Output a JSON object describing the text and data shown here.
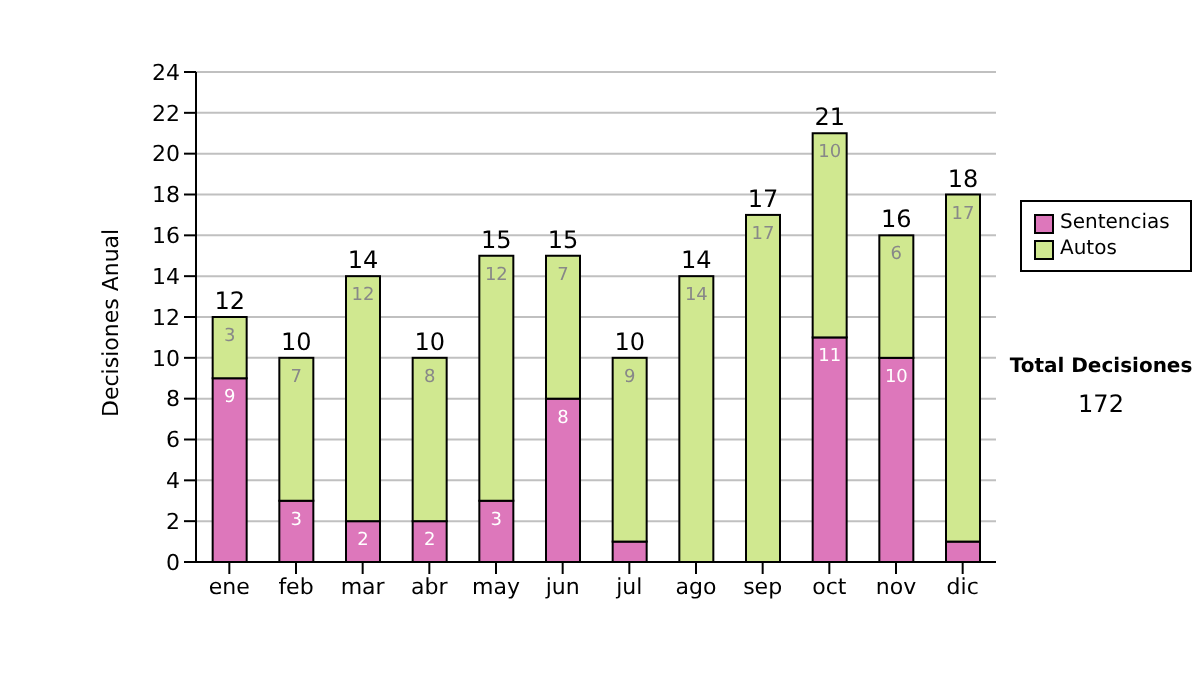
{
  "chart_data": {
    "type": "bar",
    "stacked": true,
    "ylabel": "Decisiones Anual",
    "categories": [
      "ene",
      "feb",
      "mar",
      "abr",
      "may",
      "jun",
      "jul",
      "ago",
      "sep",
      "oct",
      "nov",
      "dic"
    ],
    "series": [
      {
        "name": "Sentencias",
        "color": "#dd77bb",
        "values": [
          9,
          3,
          2,
          2,
          3,
          8,
          1,
          0,
          0,
          11,
          10,
          1
        ],
        "value_labels": [
          "9",
          "3",
          "2",
          "2",
          "3",
          "8",
          null,
          null,
          null,
          "11",
          "10",
          null
        ]
      },
      {
        "name": "Autos",
        "color": "#d0e890",
        "values": [
          3,
          7,
          12,
          8,
          12,
          7,
          9,
          14,
          17,
          10,
          6,
          17
        ],
        "value_labels": [
          "3",
          "7",
          "12",
          "8",
          "12",
          "7",
          "9",
          "14",
          "17",
          "10",
          "6",
          "17"
        ]
      }
    ],
    "totals": [
      "12",
      "10",
      "14",
      "10",
      "15",
      "15",
      "10",
      "14",
      "17",
      "21",
      "16",
      "18"
    ],
    "ylim": [
      0,
      24
    ],
    "yticks": [
      0,
      2,
      4,
      6,
      8,
      10,
      12,
      14,
      16,
      18,
      20,
      22,
      24
    ],
    "grid": "y",
    "legend": "right",
    "annotations": [
      "Total Decisiones",
      "172"
    ]
  }
}
